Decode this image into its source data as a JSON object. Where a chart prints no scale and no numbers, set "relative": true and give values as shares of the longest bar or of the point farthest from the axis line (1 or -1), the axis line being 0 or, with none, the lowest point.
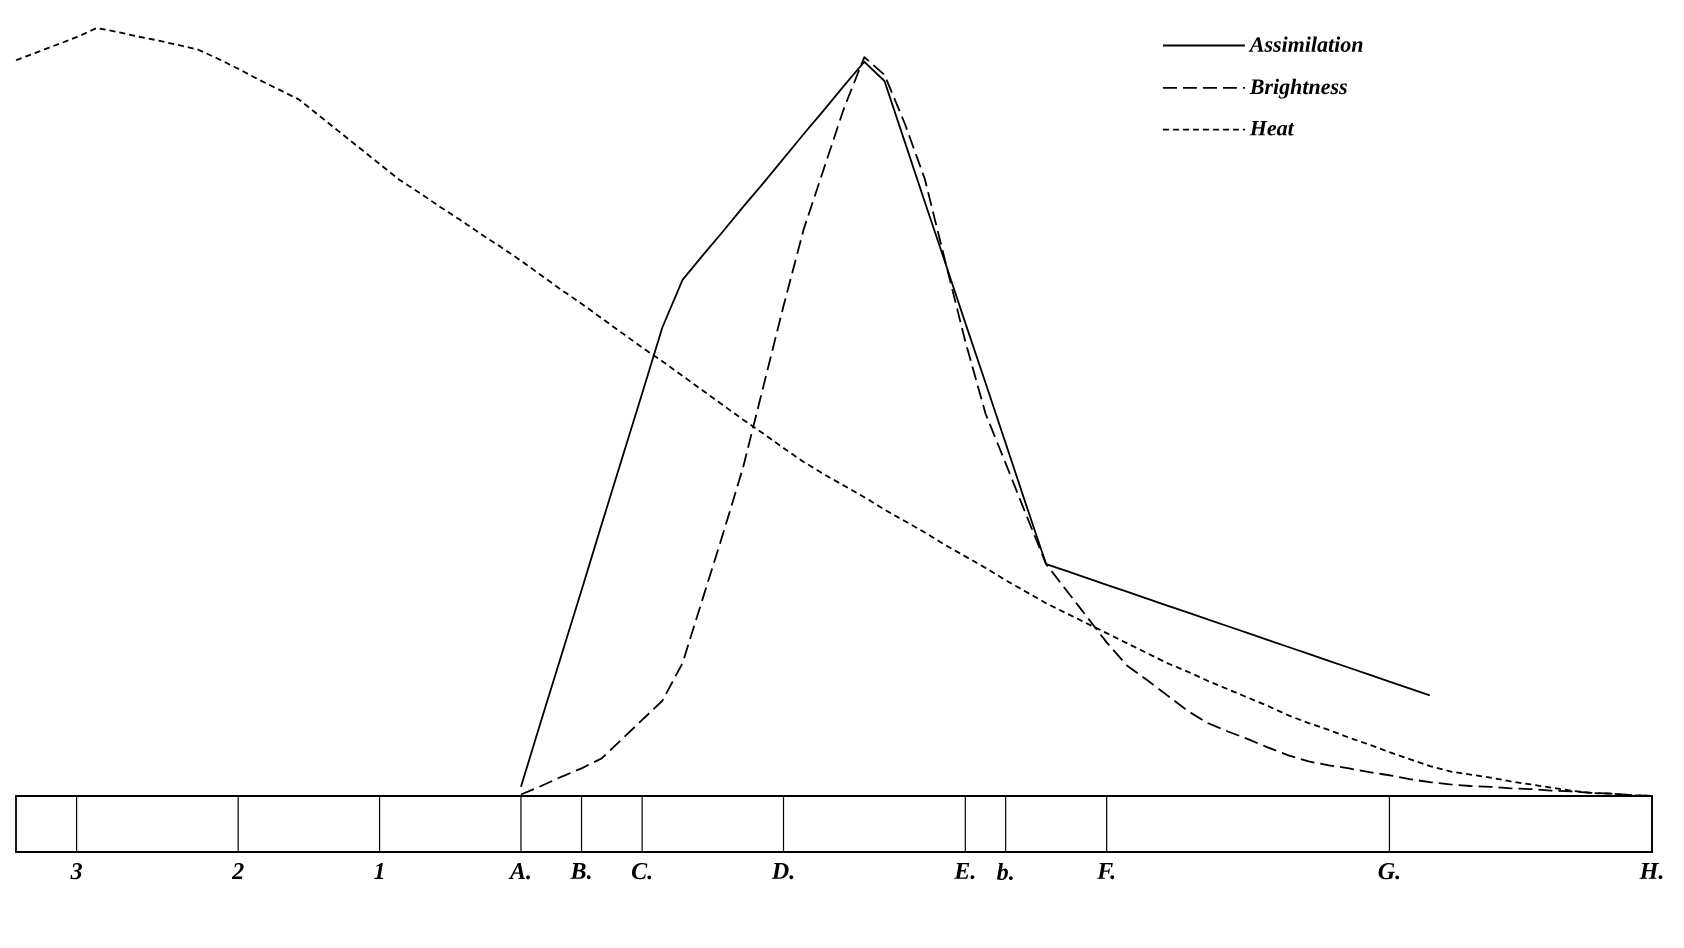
{
  "chart_data": {
    "type": "line",
    "relative": true,
    "legend": "top right",
    "categories": [
      null,
      null,
      null,
      "3",
      null,
      null,
      null,
      null,
      null,
      null,
      null,
      "2",
      null,
      null,
      null,
      null,
      null,
      null,
      "1",
      null,
      null,
      null,
      null,
      null,
      null,
      "A.",
      null,
      null,
      "B.",
      null,
      null,
      "C.",
      null,
      null,
      null,
      null,
      null,
      null,
      "D.",
      null,
      null,
      null,
      null,
      null,
      null,
      null,
      null,
      "E.",
      null,
      "b.",
      null,
      null,
      null,
      null,
      "F.",
      null,
      null,
      null,
      null,
      null,
      null,
      null,
      null,
      null,
      null,
      null,
      null,
      null,
      "G.",
      null,
      null,
      null,
      null,
      null,
      null,
      null,
      null,
      null,
      null,
      null,
      null,
      "H."
    ],
    "series": [
      {
        "name": "Assimilation",
        "color": "#000000",
        "line_style": "solid",
        "values": [
          null,
          null,
          null,
          null,
          null,
          null,
          null,
          null,
          null,
          null,
          null,
          null,
          null,
          null,
          null,
          null,
          null,
          null,
          null,
          null,
          null,
          null,
          null,
          null,
          null,
          0.012,
          0.098,
          0.183,
          0.268,
          0.354,
          0.439,
          0.524,
          0.61,
          0.672,
          0.704,
          0.735,
          0.767,
          0.798,
          0.83,
          0.862,
          0.893,
          0.925,
          0.956,
          0.931,
          0.852,
          0.773,
          0.695,
          0.616,
          0.538,
          0.459,
          0.38,
          0.302,
          0.293,
          0.284,
          0.275,
          0.266,
          0.257,
          0.248,
          0.239,
          0.23,
          0.221,
          0.212,
          0.203,
          0.194,
          0.185,
          0.176,
          0.167,
          0.158,
          0.149,
          0.14,
          0.131,
          null,
          null,
          null,
          null,
          null,
          null,
          null,
          null,
          null,
          null,
          null
        ]
      },
      {
        "name": "Brightness",
        "color": "#000000",
        "line_style": "dashed",
        "values": [
          null,
          null,
          null,
          null,
          null,
          null,
          null,
          null,
          null,
          null,
          null,
          null,
          null,
          null,
          null,
          null,
          null,
          null,
          null,
          null,
          null,
          null,
          null,
          null,
          null,
          0.002,
          0.013,
          0.025,
          0.036,
          0.049,
          0.074,
          0.099,
          0.124,
          0.173,
          0.257,
          0.341,
          0.428,
          0.533,
          0.638,
          0.738,
          0.817,
          0.896,
          0.962,
          0.939,
          0.876,
          0.803,
          0.697,
          0.592,
          0.498,
          0.433,
          0.367,
          0.302,
          0.268,
          0.234,
          0.2,
          0.17,
          0.151,
          0.131,
          0.111,
          0.095,
          0.084,
          0.074,
          0.063,
          0.053,
          0.045,
          0.04,
          0.036,
          0.031,
          0.027,
          0.022,
          0.018,
          0.015,
          0.013,
          0.012,
          0.01,
          0.009,
          0.007,
          0.006,
          0.004,
          0.003,
          0.001,
          0
        ]
      },
      {
        "name": "Heat",
        "color": "#000000",
        "line_style": "dotted",
        "values": [
          0.958,
          0.968,
          0.978,
          0.988,
          1.0,
          0.995,
          0.989,
          0.984,
          0.978,
          0.972,
          0.96,
          0.947,
          0.933,
          0.92,
          0.907,
          0.886,
          0.865,
          0.844,
          0.823,
          0.802,
          0.785,
          0.767,
          0.75,
          0.732,
          0.715,
          0.697,
          0.678,
          0.659,
          0.641,
          0.622,
          0.603,
          0.584,
          0.566,
          0.547,
          0.528,
          0.509,
          0.49,
          0.472,
          0.453,
          0.435,
          0.419,
          0.404,
          0.389,
          0.373,
          0.358,
          0.343,
          0.327,
          0.312,
          0.297,
          0.281,
          0.266,
          0.251,
          0.238,
          0.225,
          0.212,
          0.199,
          0.186,
          0.173,
          0.162,
          0.15,
          0.139,
          0.128,
          0.117,
          0.105,
          0.095,
          0.086,
          0.076,
          0.067,
          0.057,
          0.048,
          0.039,
          0.032,
          0.028,
          0.024,
          0.019,
          0.015,
          0.011,
          0.007,
          0.004,
          0.003,
          0.001,
          0
        ]
      }
    ]
  }
}
